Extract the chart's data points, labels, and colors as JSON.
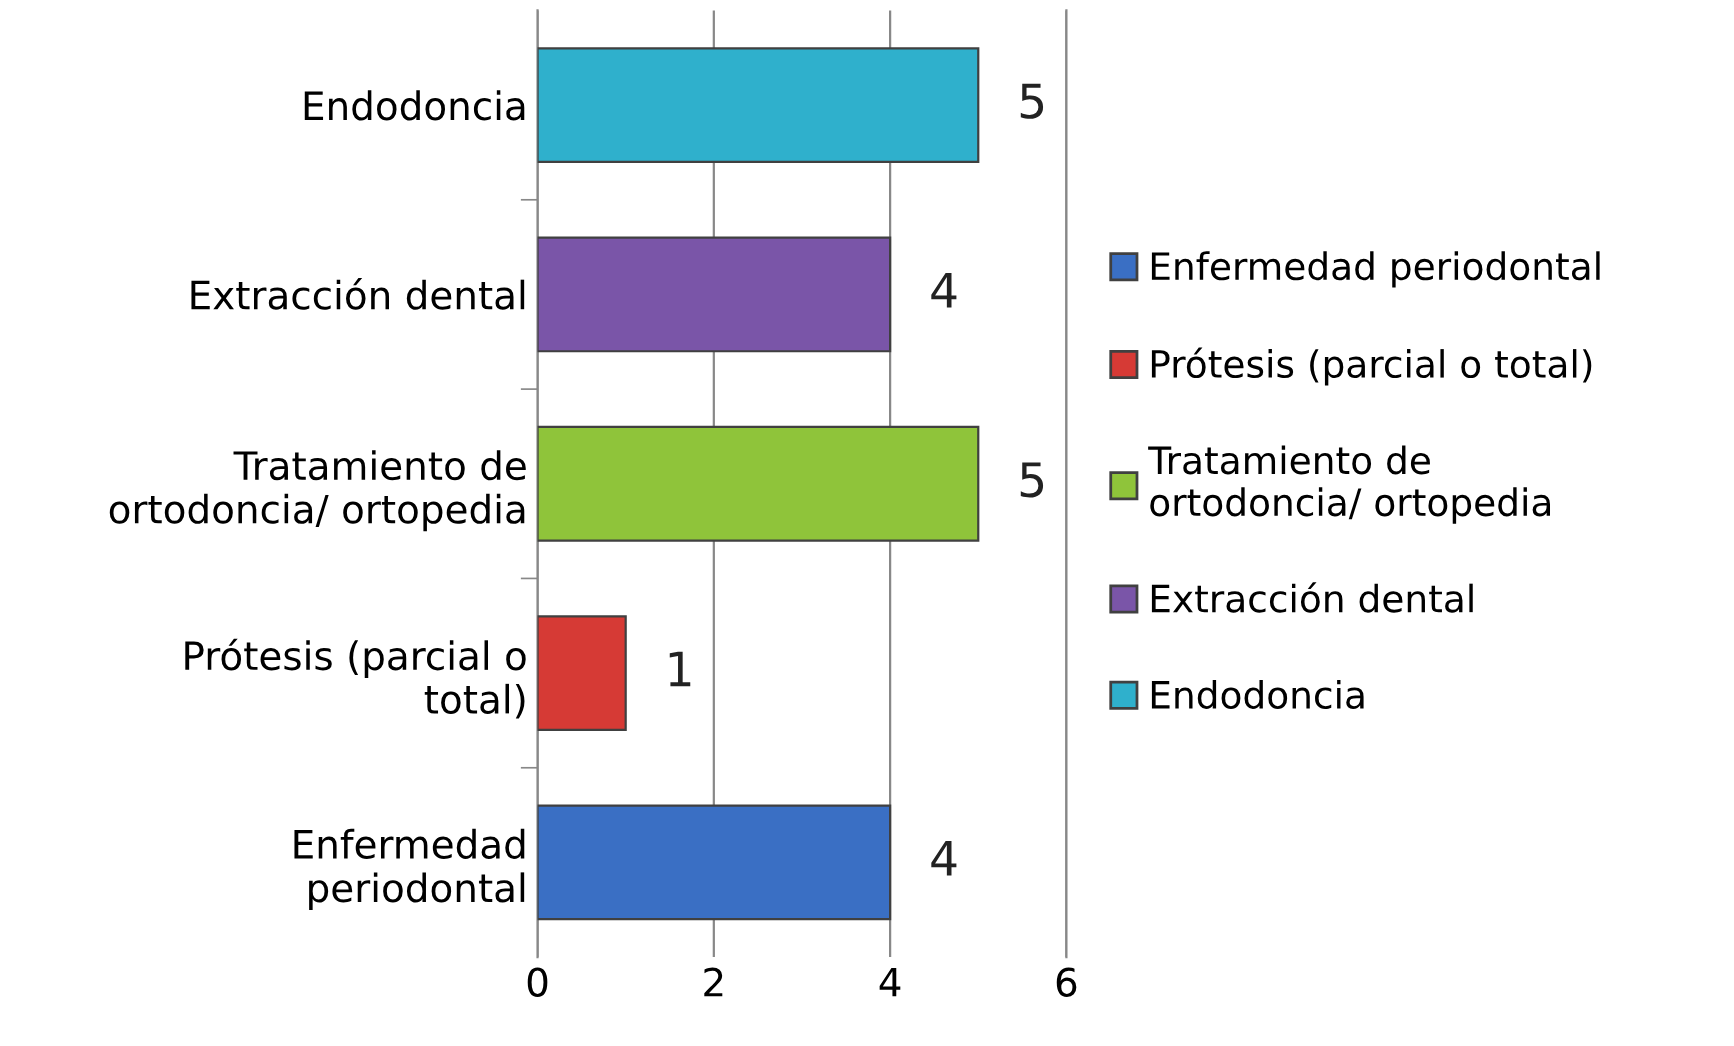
{
  "chart_data": {
    "type": "bar",
    "orientation": "horizontal",
    "categories": [
      "Endodoncia",
      "Extracción dental",
      "Tratamiento de\nortodoncia/ ortopedia",
      "Prótesis (parcial o\ntotal)",
      "Enfermedad\nperiodontal"
    ],
    "series": [
      {
        "name": "Enfermedad periodontal",
        "color": "#3a6fc4",
        "values": [
          null,
          null,
          null,
          null,
          4
        ]
      },
      {
        "name": "Prótesis (parcial o total)",
        "color": "#d63a35",
        "values": [
          null,
          null,
          null,
          1,
          null
        ]
      },
      {
        "name": "Tratamiento de\nortodoncia/ ortopedia",
        "color": "#8fc43a",
        "values": [
          null,
          null,
          5,
          null,
          null
        ]
      },
      {
        "name": "Extracción dental",
        "color": "#7a55a8",
        "values": [
          null,
          4,
          null,
          null,
          null
        ]
      },
      {
        "name": "Endodoncia",
        "color": "#2fb0cc",
        "values": [
          5,
          null,
          null,
          null,
          null
        ]
      }
    ],
    "xlim": [
      0,
      6
    ],
    "xticks": [
      0,
      2,
      4,
      6
    ],
    "grid": "x",
    "legend": "right",
    "data_labels": true
  }
}
